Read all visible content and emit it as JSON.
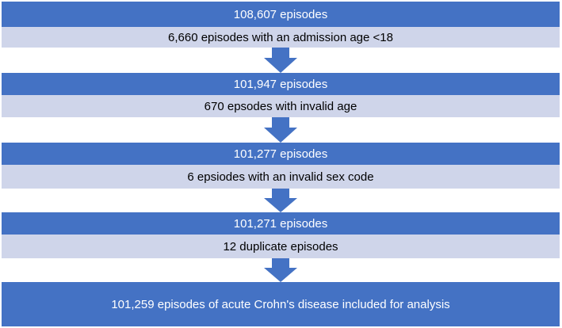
{
  "flow": {
    "steps": [
      {
        "count": "108,607 episodes",
        "exclusion": "6,660 episodes with an admission age  <18"
      },
      {
        "count": "101,947 episodes",
        "exclusion": "670 epsodes with invalid age"
      },
      {
        "count": "101,277 episodes",
        "exclusion": "6 epsiodes with an invalid sex code"
      },
      {
        "count": "101,271 episodes",
        "exclusion": "12 duplicate episodes"
      }
    ],
    "final": "101,259 episodes of acute Crohn's disease included for analysis"
  },
  "colors": {
    "count_box": "#4472c4",
    "exclusion_box": "#cfd5ea",
    "arrow": "#4472c4"
  }
}
